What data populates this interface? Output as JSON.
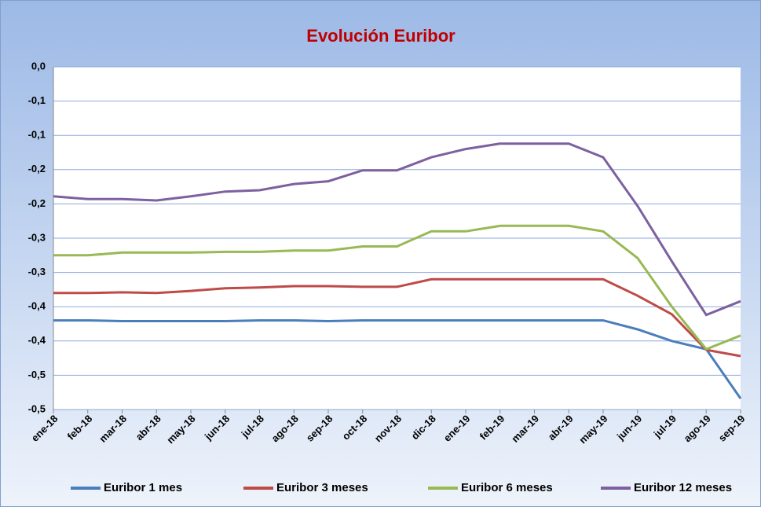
{
  "chart_data": {
    "type": "line",
    "title": "Evolución Euribor",
    "categories": [
      "ene-18",
      "feb-18",
      "mar-18",
      "abr-18",
      "may-18",
      "jun-18",
      "jul-18",
      "ago-18",
      "sep-18",
      "oct-18",
      "nov-18",
      "dic-18",
      "ene-19",
      "feb-19",
      "mar-19",
      "abr-19",
      "may-19",
      "jun-19",
      "jul-19",
      "ago-19",
      "sep-19"
    ],
    "series": [
      {
        "name": "Euribor 1 mes",
        "color": "#4a7ebb",
        "values": [
          -0.37,
          -0.37,
          -0.371,
          -0.371,
          -0.371,
          -0.371,
          -0.37,
          -0.37,
          -0.371,
          -0.37,
          -0.37,
          -0.37,
          -0.37,
          -0.37,
          -0.37,
          -0.37,
          -0.37,
          -0.383,
          -0.4,
          -0.412,
          -0.484
        ]
      },
      {
        "name": "Euribor 3 meses",
        "color": "#be4b48",
        "values": [
          -0.33,
          -0.33,
          -0.329,
          -0.33,
          -0.327,
          -0.323,
          -0.322,
          -0.32,
          -0.32,
          -0.321,
          -0.321,
          -0.31,
          -0.31,
          -0.31,
          -0.31,
          -0.31,
          -0.31,
          -0.334,
          -0.361,
          -0.413,
          -0.422
        ]
      },
      {
        "name": "Euribor 6 meses",
        "color": "#98b954",
        "values": [
          -0.275,
          -0.275,
          -0.271,
          -0.271,
          -0.271,
          -0.27,
          -0.27,
          -0.268,
          -0.268,
          -0.262,
          -0.262,
          -0.24,
          -0.24,
          -0.232,
          -0.232,
          -0.232,
          -0.24,
          -0.279,
          -0.35,
          -0.412,
          -0.392
        ]
      },
      {
        "name": "Euribor 12 meses",
        "color": "#7d60a0",
        "values": [
          -0.189,
          -0.193,
          -0.193,
          -0.195,
          -0.189,
          -0.182,
          -0.18,
          -0.171,
          -0.167,
          -0.151,
          -0.151,
          -0.132,
          -0.12,
          -0.112,
          -0.112,
          -0.112,
          -0.132,
          -0.203,
          -0.284,
          -0.362,
          -0.342
        ]
      }
    ],
    "ylim": [
      -0.5,
      0
    ],
    "yticks": [
      {
        "value": 0,
        "label": "0,0"
      },
      {
        "value": -0.05,
        "label": "-0,1"
      },
      {
        "value": -0.1,
        "label": "-0,1"
      },
      {
        "value": -0.15,
        "label": "-0,2"
      },
      {
        "value": -0.2,
        "label": "-0,2"
      },
      {
        "value": -0.25,
        "label": "-0,3"
      },
      {
        "value": -0.3,
        "label": "-0,3"
      },
      {
        "value": -0.35,
        "label": "-0,4"
      },
      {
        "value": -0.4,
        "label": "-0,4"
      },
      {
        "value": -0.45,
        "label": "-0,5"
      },
      {
        "value": -0.5,
        "label": "-0,5"
      }
    ],
    "grid": true,
    "legend": "bottom"
  }
}
